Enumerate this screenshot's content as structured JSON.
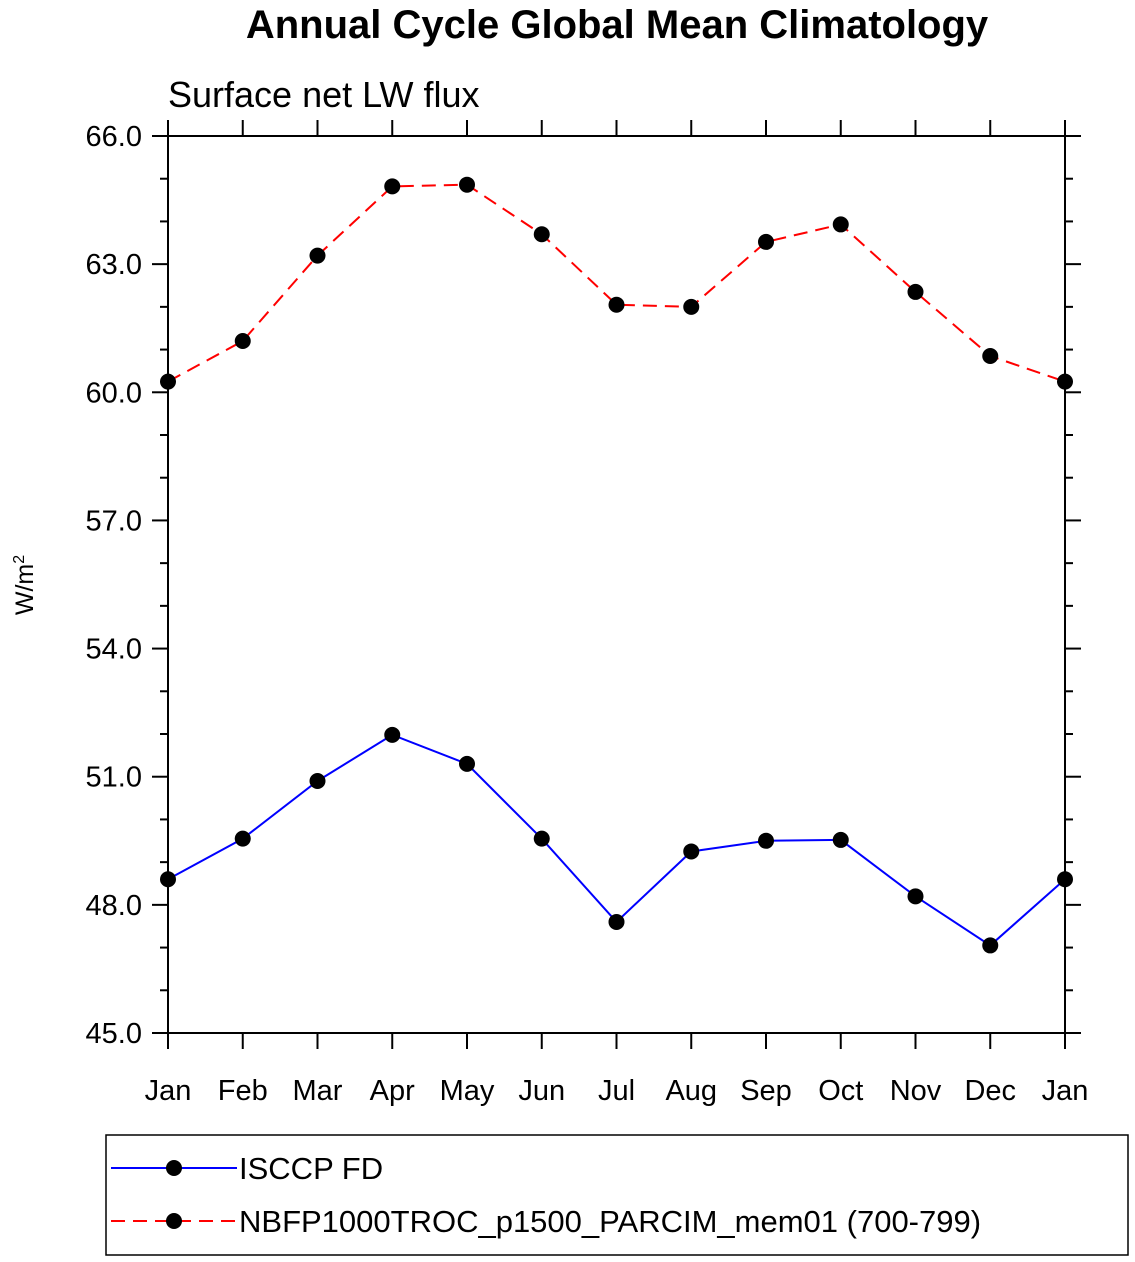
{
  "chart_data": {
    "type": "line",
    "title": "Annual Cycle Global Mean Climatology",
    "subtitle": "Surface net LW flux",
    "ylabel": "W/m",
    "ylabel_superscript": "2",
    "xlabel": "",
    "categories": [
      "Jan",
      "Feb",
      "Mar",
      "Apr",
      "May",
      "Jun",
      "Jul",
      "Aug",
      "Sep",
      "Oct",
      "Nov",
      "Dec",
      "Jan"
    ],
    "ylim": [
      45.0,
      66.0
    ],
    "yticks": [
      45.0,
      48.0,
      51.0,
      54.0,
      57.0,
      60.0,
      63.0,
      66.0
    ],
    "ytick_labels": [
      "45.0",
      "48.0",
      "51.0",
      "54.0",
      "57.0",
      "60.0",
      "63.0",
      "66.0"
    ],
    "grid": false,
    "legend_position": "bottom",
    "series": [
      {
        "name": "ISCCP FD",
        "color": "#0000ff",
        "dash": "solid",
        "marker": "circle",
        "values": [
          48.6,
          49.55,
          50.9,
          51.98,
          51.3,
          49.55,
          47.6,
          49.25,
          49.5,
          49.52,
          48.2,
          47.05,
          48.6
        ]
      },
      {
        "name": "NBFP1000TROC_p1500_PARCIM_mem01 (700-799)",
        "color": "#ff0000",
        "dash": "dashed",
        "marker": "circle",
        "values": [
          60.25,
          61.2,
          63.2,
          64.82,
          64.86,
          63.7,
          62.05,
          62.0,
          63.52,
          63.93,
          62.35,
          60.85,
          60.25
        ]
      }
    ]
  }
}
